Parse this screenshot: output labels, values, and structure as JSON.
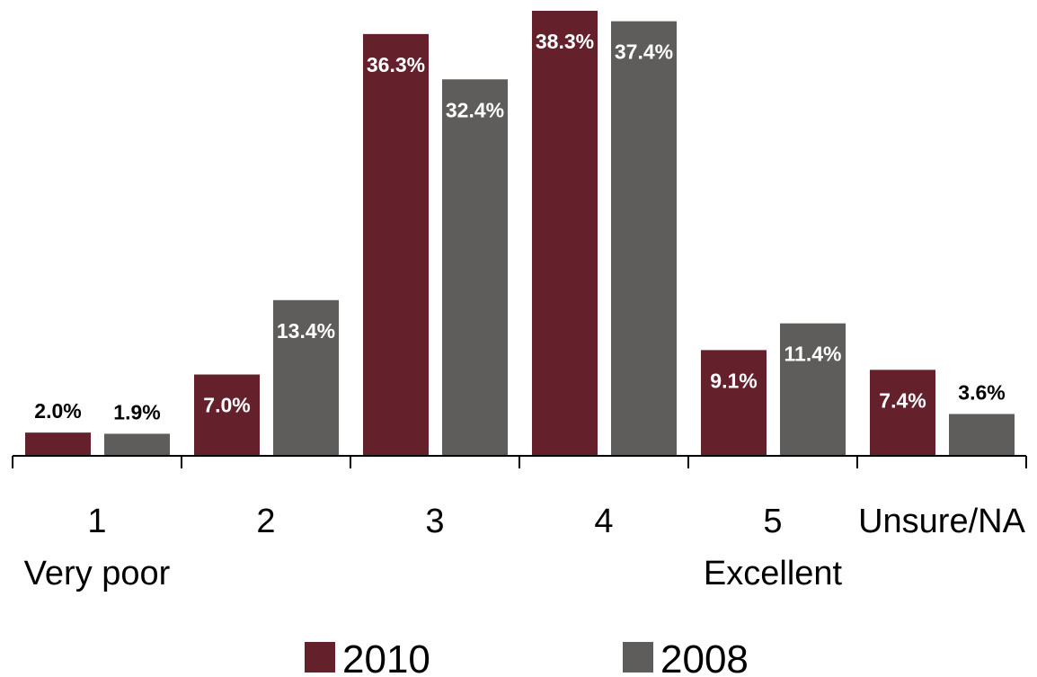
{
  "chart_data": {
    "type": "bar",
    "categories": [
      "1",
      "2",
      "3",
      "4",
      "5",
      "Unsure/NA"
    ],
    "category_sublabels": [
      "Very poor",
      "",
      "",
      "",
      "Excellent",
      ""
    ],
    "series": [
      {
        "name": "2010",
        "color": "#64202b",
        "values": [
          2.0,
          7.0,
          36.3,
          38.3,
          9.1,
          7.4
        ],
        "data_labels": [
          "2.0%",
          "7.0%",
          "36.3%",
          "38.3%",
          "9.1%",
          "7.4%"
        ]
      },
      {
        "name": "2008",
        "color": "#5e5d5b",
        "values": [
          1.9,
          13.4,
          32.4,
          37.4,
          11.4,
          3.6
        ],
        "data_labels": [
          "1.9%",
          "13.4%",
          "32.4%",
          "37.4%",
          "11.4%",
          "3.6%"
        ]
      }
    ],
    "title": "",
    "xlabel": "",
    "ylabel": "",
    "ylim": [
      0,
      38.3
    ],
    "grid": false,
    "legend": "bottom-center",
    "colors": {
      "label_inside": "#ffffff",
      "label_outside": "#000000",
      "axis": "#000000"
    }
  }
}
